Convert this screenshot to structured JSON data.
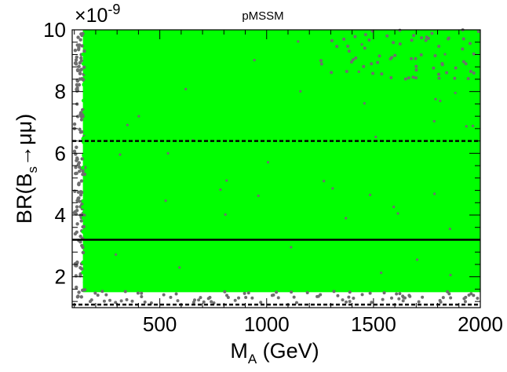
{
  "chart_data": {
    "type": "scatter",
    "title": "pMSSM",
    "xlabel": {
      "main": "M",
      "sub": "A",
      "suffix": " (GeV)"
    },
    "ylabel": {
      "prefix": "BR(B",
      "sub": "s",
      "suffix": "→μμ)"
    },
    "y_multiplier": {
      "base": "×10",
      "exponent": "-9"
    },
    "xlim": [
      90,
      2000
    ],
    "ylim": [
      1.0,
      10.0
    ],
    "x_ticks": [
      500,
      1000,
      1500,
      2000
    ],
    "x_tick_labels": [
      "500",
      "1000",
      "1500",
      "2000"
    ],
    "y_ticks": [
      2,
      4,
      6,
      8,
      10
    ],
    "y_tick_labels": [
      "2",
      "4",
      "6",
      "8",
      "10"
    ],
    "series": [
      {
        "color": "#00ff00",
        "region": {
          "x": [
            140,
            2000
          ],
          "y": [
            1.5,
            10.0
          ]
        }
      },
      {
        "color": "#6e6e6e",
        "region": {
          "x": [
            90,
            2000
          ],
          "y": [
            1.1,
            10.0
          ]
        }
      }
    ],
    "reference_lines": [
      {
        "y": 6.4,
        "style": "dashed",
        "color": "#000000"
      },
      {
        "y": 3.2,
        "style": "solid",
        "color": "#000000"
      },
      {
        "y": 1.1,
        "style": "dashed",
        "color": "#000000"
      }
    ],
    "grid": false,
    "legend": "none"
  }
}
